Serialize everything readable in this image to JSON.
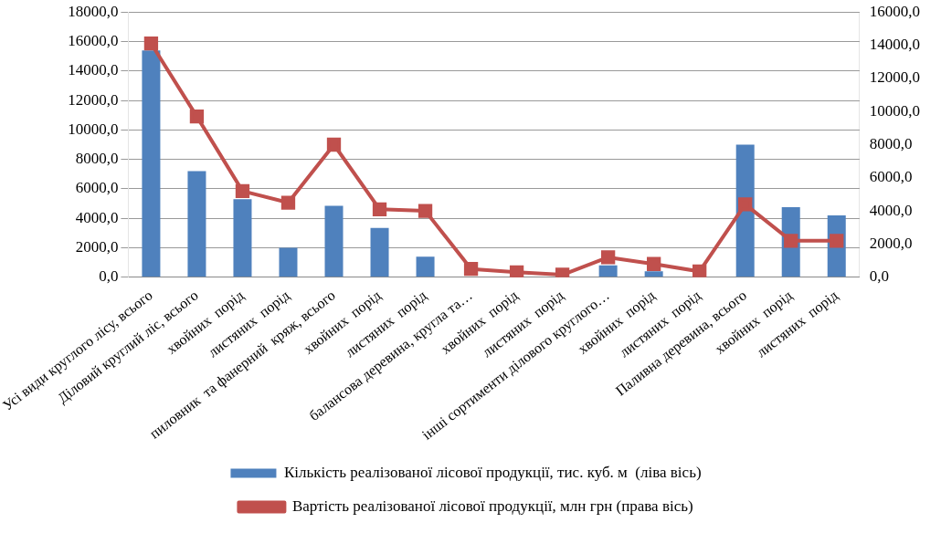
{
  "chart_data": {
    "type": "bar",
    "categories": [
      "Усі види круглого лісу, всього",
      "Діловий круглий ліс, всього",
      "хвойних  порід",
      "листяних  порід",
      "пиловник  та фанерний  кряж, всього",
      "хвойних  порід",
      "листяних  порід",
      "балансова деревина, кругла та…",
      "хвойних  порід",
      "листяних  порід",
      "інші сортименти ділового круглого…",
      "хвойних  порід",
      "листяних  порід",
      "Паливна деревина, всього",
      "хвойних  порід",
      "листяних  порід"
    ],
    "series": [
      {
        "name": "Кількість реалізованої лісової продукції, тис. куб. м  (ліва вісь)",
        "color": "#4f81bd",
        "values": [
          15400,
          7200,
          5300,
          2000,
          4850,
          3350,
          1400,
          null,
          null,
          null,
          800,
          400,
          null,
          9000,
          4750,
          4200
        ]
      },
      {
        "name": "Вартість реалізованої лісової продукції, млн грн (права вісь)",
        "color": "#c0504d",
        "type": "line",
        "axis": "y2",
        "values": [
          14100,
          9700,
          5200,
          4500,
          8000,
          4100,
          4000,
          500,
          300,
          150,
          1200,
          800,
          350,
          4400,
          2200,
          2200
        ]
      }
    ],
    "ylim": [
      0,
      18000
    ],
    "yticks": [
      {
        "value": 0,
        "label": "0,0"
      },
      {
        "value": 2000,
        "label": "2000,0"
      },
      {
        "value": 4000,
        "label": "4000,0"
      },
      {
        "value": 6000,
        "label": "6000,0"
      },
      {
        "value": 8000,
        "label": "8000,0"
      },
      {
        "value": 10000,
        "label": "10000,0"
      },
      {
        "value": 12000,
        "label": "12000,0"
      },
      {
        "value": 14000,
        "label": "14000,0"
      },
      {
        "value": 16000,
        "label": "16000,0"
      },
      {
        "value": 18000,
        "label": "18000,0"
      }
    ],
    "y2lim": [
      0,
      16000
    ],
    "y2ticks": [
      {
        "value": 0,
        "label": "0,0"
      },
      {
        "value": 2000,
        "label": "2000,0"
      },
      {
        "value": 4000,
        "label": "4000,0"
      },
      {
        "value": 6000,
        "label": "6000,0"
      },
      {
        "value": 8000,
        "label": "8000,0"
      },
      {
        "value": 10000,
        "label": "10000,0"
      },
      {
        "value": 12000,
        "label": "12000,0"
      },
      {
        "value": 14000,
        "label": "14000,0"
      },
      {
        "value": 16000,
        "label": "16000,0"
      }
    ],
    "grid": "y",
    "legend": "bottom",
    "marker": "square"
  }
}
